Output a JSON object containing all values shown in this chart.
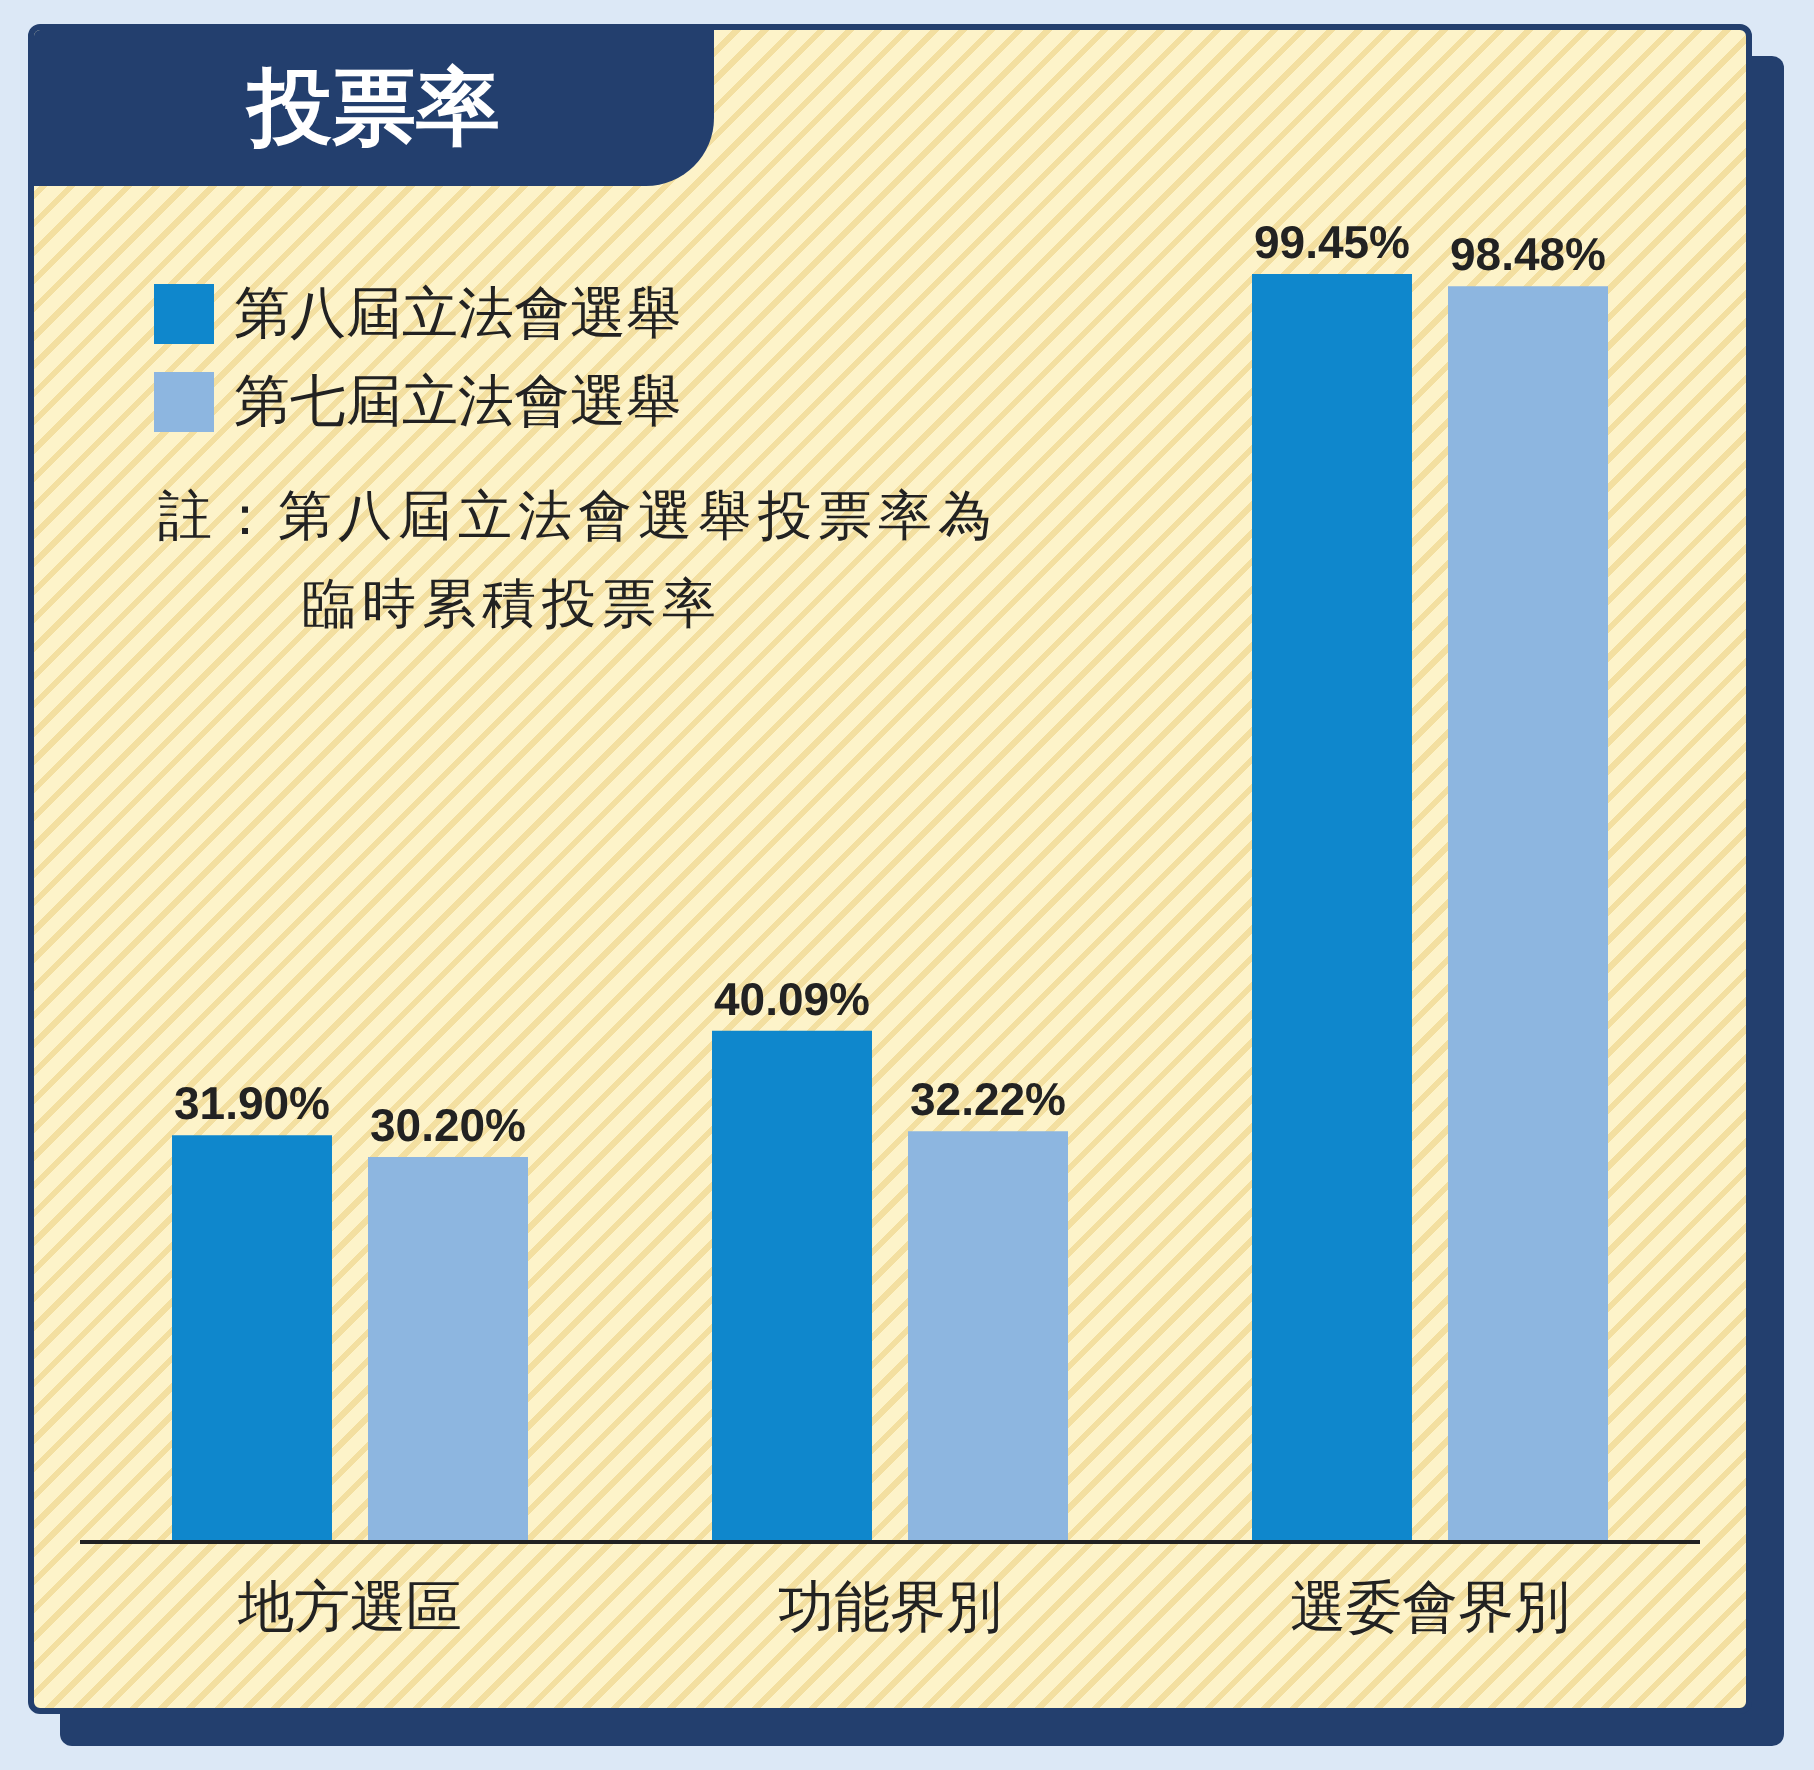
{
  "chart_data": {
    "type": "bar",
    "title": "投票率",
    "categories": [
      "地方選區",
      "功能界別",
      "選委會界別"
    ],
    "series": [
      {
        "name": "第八屆立法會選舉",
        "color": "#0f87cc",
        "values": [
          31.9,
          40.09,
          99.45
        ],
        "value_labels": [
          "31.90%",
          "40.09%",
          "99.45%"
        ]
      },
      {
        "name": "第七屆立法會選舉",
        "color": "#8db6e0",
        "values": [
          30.2,
          32.22,
          98.48
        ],
        "value_labels": [
          "30.20%",
          "32.22%",
          "98.48%"
        ]
      }
    ],
    "annotations": [
      "註：第八屆立法會選舉投票率為臨時累積投票率"
    ],
    "legend": "top left",
    "grid": false
  }
}
